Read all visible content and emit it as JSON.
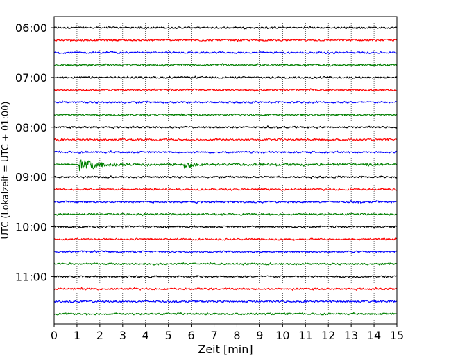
{
  "chart_data": {
    "type": "line",
    "title": "",
    "xlabel": "Zeit  [min]",
    "ylabel": "UTC (Lokalzeit = UTC + 01:00)",
    "xlim": [
      0,
      15
    ],
    "x_ticks": [
      "0",
      "1",
      "2",
      "3",
      "4",
      "5",
      "6",
      "7",
      "8",
      "9",
      "10",
      "11",
      "12",
      "13",
      "14",
      "15"
    ],
    "y_ticks": [
      "06:00",
      "07:00",
      "08:00",
      "09:00",
      "10:00",
      "11:00"
    ],
    "grid": "vertical dotted",
    "trace_interval_min": 15,
    "trace_count": 24,
    "trace_colors": [
      "#000000",
      "#ff0000",
      "#0000ff",
      "#008000"
    ],
    "events": [
      {
        "trace": "08:45",
        "x_min": 1.1,
        "description": "seismic event signal"
      },
      {
        "trace": "08:45",
        "x_min": 5.7,
        "description": "secondary signal"
      }
    ]
  }
}
